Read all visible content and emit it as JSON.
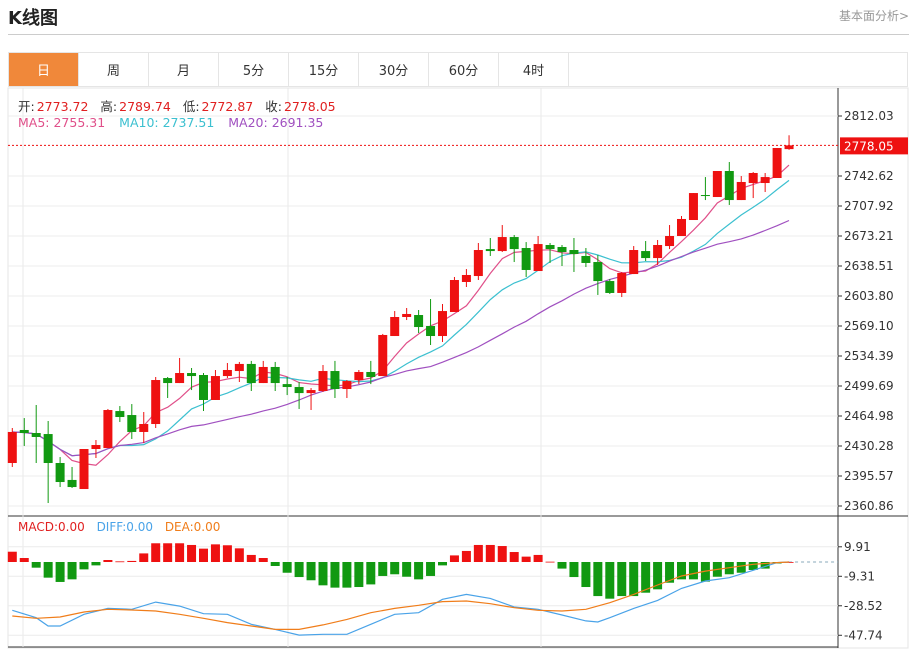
{
  "header": {
    "title": "K线图",
    "link": "基本面分析>"
  },
  "tabs": [
    {
      "label": "日",
      "active": true
    },
    {
      "label": "周"
    },
    {
      "label": "月"
    },
    {
      "label": "5分"
    },
    {
      "label": "15分"
    },
    {
      "label": "30分"
    },
    {
      "label": "60分"
    },
    {
      "label": "4时"
    }
  ],
  "ohlc_info": {
    "open_label": "开:",
    "open": "2773.72",
    "high_label": "高:",
    "high": "2789.74",
    "low_label": "低:",
    "low": "2772.87",
    "close_label": "收:",
    "close": "2778.05"
  },
  "ma_info": {
    "ma5": "MA5: 2755.31",
    "ma10": "MA10: 2737.51",
    "ma20": "MA20: 2691.35"
  },
  "macd_info": {
    "macd": "MACD:0.00",
    "diff": "DIFF:0.00",
    "dea": "DEA:0.00"
  },
  "colors": {
    "up": "#ee1111",
    "down": "#119911",
    "ma5": "#e0508a",
    "ma10": "#3cc0d0",
    "ma20": "#a050c0",
    "diff": "#4aa3e8",
    "dea": "#f07d1a",
    "accent": "#f0883a"
  },
  "chart_data": [
    {
      "type": "candlestick",
      "price_ticks": [
        2812.03,
        2778.05,
        2742.62,
        2707.92,
        2673.21,
        2638.51,
        2603.8,
        2569.1,
        2534.39,
        2499.69,
        2464.98,
        2430.28,
        2395.57,
        2360.86
      ],
      "price_tick_labels": [
        "2812.03",
        "2742.62",
        "2707.92",
        "2673.21",
        "2638.51",
        "2603.80",
        "2569.10",
        "2534.39",
        "2499.69",
        "2464.98",
        "2430.28",
        "2395.57",
        "2360.86"
      ],
      "last_price": "2778.05",
      "ylim": [
        2360.86,
        2812.03
      ],
      "grid": true,
      "candles_ochl_order": "open,close,high,low",
      "candles": [
        [
          2410.6,
          2446.5,
          2451.1,
          2406.0
        ],
        [
          2448.8,
          2445.3,
          2462.6,
          2430.3
        ],
        [
          2445.3,
          2440.7,
          2477.7,
          2410.6
        ],
        [
          2444.1,
          2410.6,
          2459.2,
          2364.3
        ],
        [
          2410.6,
          2388.6,
          2417.5,
          2382.8
        ],
        [
          2391.0,
          2382.8,
          2406.0,
          2381.7
        ],
        [
          2380.5,
          2426.8,
          2426.8,
          2380.5
        ],
        [
          2426.8,
          2431.4,
          2437.2,
          2416.4
        ],
        [
          2427.9,
          2471.9,
          2473.1,
          2427.9
        ],
        [
          2470.7,
          2463.8,
          2476.5,
          2458.0
        ],
        [
          2466.1,
          2446.5,
          2478.8,
          2438.4
        ],
        [
          2446.5,
          2455.7,
          2469.6,
          2433.7
        ],
        [
          2455.7,
          2506.6,
          2510.1,
          2451.1
        ],
        [
          2508.9,
          2503.1,
          2510.1,
          2485.8
        ],
        [
          2503.1,
          2514.7,
          2532.1,
          2503.1
        ],
        [
          2514.7,
          2511.2,
          2520.5,
          2495.0
        ],
        [
          2512.4,
          2483.5,
          2514.7,
          2470.7
        ],
        [
          2483.5,
          2511.2,
          2518.2,
          2483.5
        ],
        [
          2511.2,
          2518.2,
          2526.3,
          2508.9
        ],
        [
          2517.0,
          2525.2,
          2527.5,
          2504.3
        ],
        [
          2525.2,
          2503.1,
          2528.7,
          2493.9
        ],
        [
          2503.1,
          2521.7,
          2528.7,
          2503.1
        ],
        [
          2521.7,
          2503.1,
          2527.5,
          2493.9
        ],
        [
          2501.9,
          2498.5,
          2510.1,
          2489.2
        ],
        [
          2498.5,
          2491.5,
          2504.3,
          2473.1
        ],
        [
          2491.5,
          2495.0,
          2497.3,
          2471.9
        ],
        [
          2493.9,
          2517.0,
          2524.0,
          2492.7
        ],
        [
          2517.0,
          2496.2,
          2528.7,
          2485.8
        ],
        [
          2496.2,
          2505.4,
          2506.6,
          2485.8
        ],
        [
          2506.6,
          2515.9,
          2518.2,
          2501.9
        ],
        [
          2515.9,
          2510.1,
          2528.7,
          2501.9
        ],
        [
          2511.2,
          2558.7,
          2559.9,
          2511.2
        ],
        [
          2557.5,
          2579.5,
          2586.4,
          2557.5
        ],
        [
          2579.5,
          2583.0,
          2589.9,
          2576.0
        ],
        [
          2581.8,
          2567.9,
          2587.6,
          2561.0
        ],
        [
          2569.1,
          2557.5,
          2600.3,
          2547.1
        ],
        [
          2557.5,
          2586.4,
          2594.5,
          2550.6
        ],
        [
          2585.3,
          2622.3,
          2625.8,
          2585.3
        ],
        [
          2620.0,
          2628.1,
          2635.0,
          2614.2
        ],
        [
          2626.9,
          2657.0,
          2665.1,
          2622.3
        ],
        [
          2658.1,
          2655.8,
          2670.9,
          2650.1
        ],
        [
          2655.8,
          2672.0,
          2685.9,
          2654.7
        ],
        [
          2672.0,
          2658.1,
          2674.4,
          2643.1
        ],
        [
          2659.3,
          2633.9,
          2666.2,
          2625.8
        ],
        [
          2632.7,
          2663.9,
          2673.2,
          2632.7
        ],
        [
          2662.8,
          2658.1,
          2665.1,
          2642.0
        ],
        [
          2660.5,
          2654.7,
          2662.8,
          2638.5
        ],
        [
          2657.0,
          2652.4,
          2670.9,
          2631.6
        ],
        [
          2650.1,
          2642.0,
          2659.3,
          2637.3
        ],
        [
          2643.1,
          2621.1,
          2651.2,
          2605.0
        ],
        [
          2621.1,
          2607.3,
          2623.5,
          2606.1
        ],
        [
          2607.3,
          2630.4,
          2631.6,
          2602.6
        ],
        [
          2629.2,
          2657.0,
          2661.6,
          2629.2
        ],
        [
          2655.8,
          2647.7,
          2667.4,
          2644.3
        ],
        [
          2647.7,
          2662.8,
          2668.6,
          2639.7
        ],
        [
          2661.6,
          2673.2,
          2685.9,
          2658.1
        ],
        [
          2673.2,
          2692.9,
          2696.3,
          2673.2
        ],
        [
          2691.7,
          2722.9,
          2722.9,
          2691.7
        ],
        [
          2720.6,
          2719.5,
          2741.4,
          2714.8
        ],
        [
          2718.3,
          2748.4,
          2748.4,
          2718.3
        ],
        [
          2748.4,
          2714.8,
          2758.8,
          2709.1
        ],
        [
          2714.8,
          2735.7,
          2742.6,
          2714.8
        ],
        [
          2734.5,
          2746.1,
          2747.2,
          2717.1
        ],
        [
          2734.5,
          2741.4,
          2746.1,
          2724.1
        ],
        [
          2740.3,
          2775.0,
          2775.0,
          2740.3
        ],
        [
          2773.72,
          2778.05,
          2789.74,
          2772.87
        ]
      ]
    },
    {
      "type": "bar+line",
      "ticks": [
        9.91,
        -9.31,
        -28.52,
        -47.74
      ],
      "tick_labels": [
        "9.91",
        "-9.31",
        "-28.52",
        "-47.74"
      ],
      "macd": [
        6.7,
        2.6,
        -3.7,
        -10.2,
        -13.0,
        -11.3,
        -4.8,
        -2.2,
        1.3,
        0.4,
        0.7,
        5.6,
        12.2,
        12.2,
        12.2,
        11.1,
        8.7,
        11.5,
        10.9,
        8.9,
        4.6,
        2.6,
        -2.6,
        -7.0,
        -9.8,
        -11.9,
        -15.2,
        -16.7,
        -16.7,
        -16.3,
        -14.6,
        -9.1,
        -8.0,
        -9.6,
        -11.3,
        -9.1,
        -2.2,
        4.3,
        7.2,
        11.1,
        11.1,
        10.4,
        6.5,
        3.5,
        4.6,
        0.2,
        -4.3,
        -9.8,
        -16.3,
        -22.2,
        -23.9,
        -22.2,
        -22.2,
        -20.0,
        -17.8,
        -13.5,
        -11.3,
        -11.3,
        -12.8,
        -9.6,
        -8.0,
        -7.0,
        -5.2,
        -4.3,
        -1.0,
        0
      ],
      "diff": [
        [
          0,
          -31.5
        ],
        [
          2,
          -36.3
        ],
        [
          3,
          -41.7
        ],
        [
          4,
          -41.7
        ],
        [
          6,
          -34.1
        ],
        [
          8,
          -30.2
        ],
        [
          10,
          -30.8
        ],
        [
          12,
          -26.1
        ],
        [
          14,
          -28.7
        ],
        [
          16,
          -33.7
        ],
        [
          18,
          -34.1
        ],
        [
          20,
          -40.6
        ],
        [
          22,
          -43.9
        ],
        [
          24,
          -47.6
        ],
        [
          26,
          -47.1
        ],
        [
          28,
          -47.1
        ],
        [
          30,
          -40.6
        ],
        [
          32,
          -34.1
        ],
        [
          34,
          -33.0
        ],
        [
          36,
          -24.3
        ],
        [
          38,
          -21.1
        ],
        [
          40,
          -23.7
        ],
        [
          42,
          -29.3
        ],
        [
          44,
          -30.8
        ],
        [
          46,
          -34.5
        ],
        [
          48,
          -38.4
        ],
        [
          49,
          -39.1
        ],
        [
          50,
          -36.3
        ],
        [
          52,
          -30.2
        ],
        [
          54,
          -25.0
        ],
        [
          56,
          -17.2
        ],
        [
          58,
          -12.4
        ],
        [
          60,
          -10.2
        ],
        [
          62,
          -5.4
        ],
        [
          64,
          -0.4
        ],
        [
          65,
          0
        ]
      ],
      "dea": [
        [
          0,
          -35.2
        ],
        [
          2,
          -36.7
        ],
        [
          4,
          -35.8
        ],
        [
          6,
          -32.6
        ],
        [
          8,
          -30.8
        ],
        [
          10,
          -31.3
        ],
        [
          12,
          -31.9
        ],
        [
          14,
          -34.1
        ],
        [
          16,
          -36.7
        ],
        [
          18,
          -39.5
        ],
        [
          20,
          -41.7
        ],
        [
          22,
          -43.9
        ],
        [
          24,
          -43.9
        ],
        [
          26,
          -41.0
        ],
        [
          28,
          -37.4
        ],
        [
          30,
          -33.0
        ],
        [
          32,
          -30.2
        ],
        [
          34,
          -28.2
        ],
        [
          36,
          -25.8
        ],
        [
          38,
          -25.4
        ],
        [
          40,
          -27.2
        ],
        [
          42,
          -29.8
        ],
        [
          44,
          -31.5
        ],
        [
          46,
          -31.9
        ],
        [
          48,
          -30.8
        ],
        [
          50,
          -26.5
        ],
        [
          52,
          -21.1
        ],
        [
          54,
          -15.0
        ],
        [
          56,
          -9.1
        ],
        [
          58,
          -5.9
        ],
        [
          60,
          -3.7
        ],
        [
          62,
          -1.5
        ],
        [
          64,
          -0.4
        ],
        [
          65,
          0
        ]
      ]
    }
  ]
}
